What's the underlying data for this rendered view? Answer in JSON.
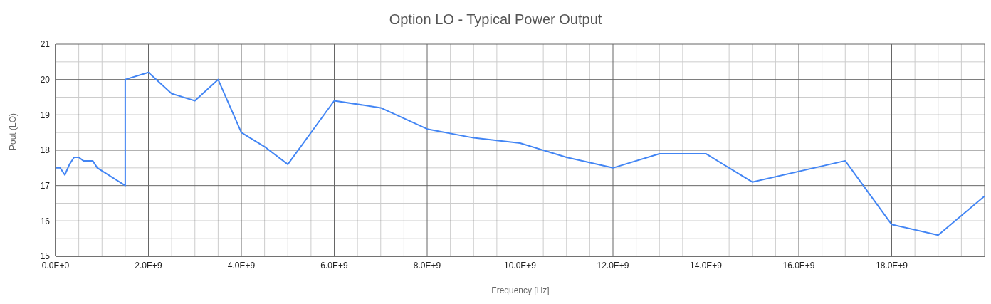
{
  "chart_data": {
    "type": "line",
    "title": "Option LO - Typical Power Output",
    "xlabel": "Frequency [Hz]",
    "ylabel": "Pout (LO)",
    "x": [
      0,
      100000000,
      200000000,
      300000000,
      400000000,
      500000000,
      600000000,
      800000000,
      900000000,
      1500000000,
      1500000000,
      2000000000,
      2500000000,
      3000000000,
      3500000000,
      4000000000,
      4500000000,
      5000000000,
      6000000000,
      7000000000,
      8000000000,
      9000000000,
      10000000000,
      11000000000,
      12000000000,
      13000000000,
      14000000000,
      15000000000,
      17000000000,
      18000000000,
      19000000000,
      20000000000
    ],
    "series": [
      {
        "color": "#4285f4",
        "values": [
          17.5,
          17.5,
          17.3,
          17.6,
          17.8,
          17.8,
          17.7,
          17.7,
          17.5,
          17.0,
          20.0,
          20.2,
          19.6,
          19.4,
          20.0,
          18.5,
          18.1,
          17.6,
          19.4,
          19.2,
          18.6,
          18.35,
          18.2,
          17.8,
          17.5,
          17.9,
          17.9,
          17.1,
          17.7,
          15.9,
          15.6,
          16.7
        ]
      }
    ],
    "xlim": [
      0,
      20000000000
    ],
    "xticks": [
      {
        "value": 0,
        "label": "0.0E+0"
      },
      {
        "value": 2000000000,
        "label": "2.0E+9"
      },
      {
        "value": 4000000000,
        "label": "4.0E+9"
      },
      {
        "value": 6000000000,
        "label": "6.0E+9"
      },
      {
        "value": 8000000000,
        "label": "8.0E+9"
      },
      {
        "value": 10000000000,
        "label": "10.0E+9"
      },
      {
        "value": 12000000000,
        "label": "12.0E+9"
      },
      {
        "value": 14000000000,
        "label": "14.0E+9"
      },
      {
        "value": 16000000000,
        "label": "16.0E+9"
      },
      {
        "value": 18000000000,
        "label": "18.0E+9"
      },
      {
        "value": 20000000000,
        "label": null
      }
    ],
    "ylim": [
      15,
      21
    ],
    "yticks": [
      15,
      16,
      17,
      18,
      19,
      20,
      21
    ],
    "grid": true,
    "marker": "none",
    "line_style": "solid"
  }
}
